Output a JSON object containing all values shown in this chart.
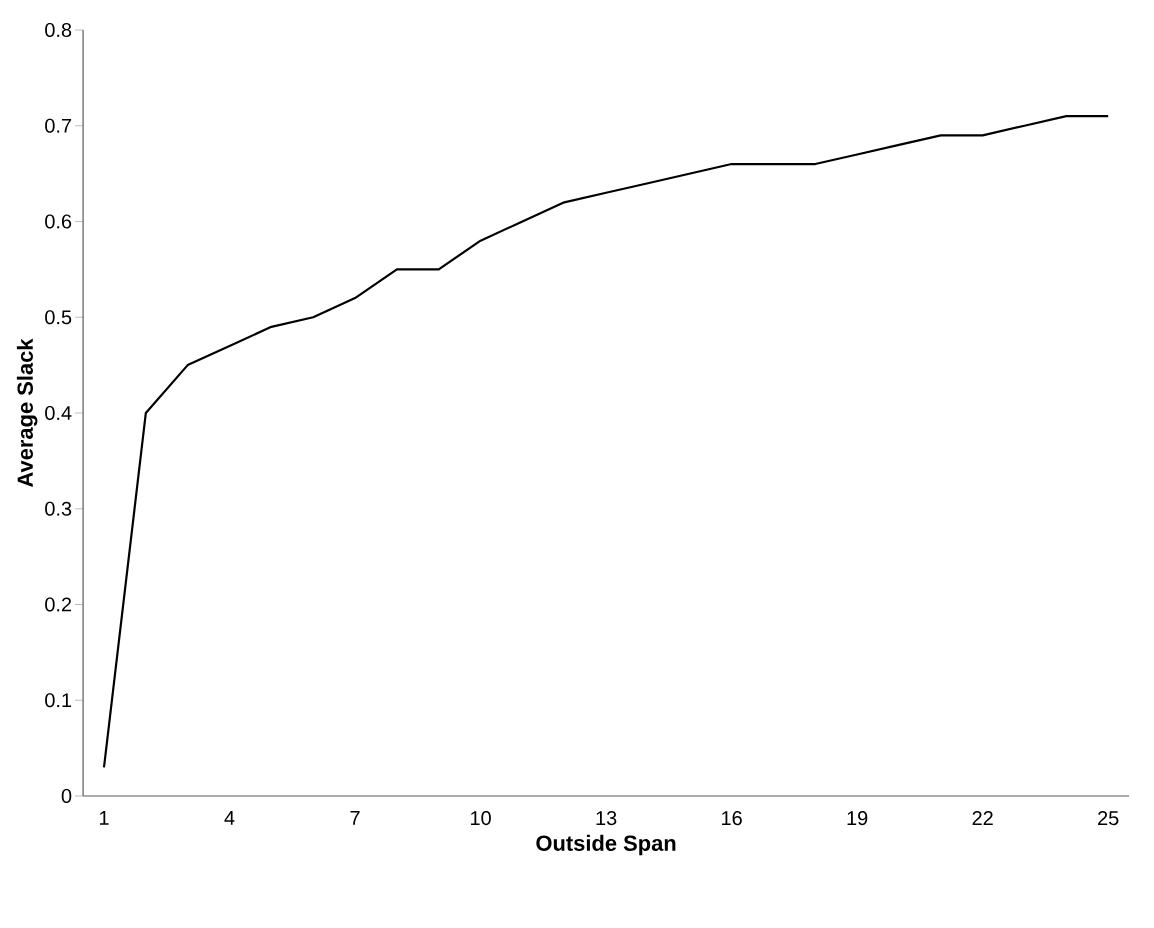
{
  "chart_data": {
    "type": "line",
    "xlabel": "Outside Span",
    "ylabel": "Average Slack",
    "categories": [
      "1",
      null,
      null,
      "4",
      null,
      null,
      "7",
      null,
      null,
      "10",
      null,
      null,
      "13",
      null,
      null,
      "16",
      null,
      null,
      "19",
      null,
      null,
      "22",
      null,
      null,
      "25"
    ],
    "series": [
      {
        "color": "#000000",
        "values": [
          0.03,
          0.4,
          0.45,
          0.47,
          0.49,
          0.5,
          0.52,
          0.55,
          0.55,
          0.58,
          0.6,
          0.62,
          0.63,
          0.64,
          0.65,
          0.66,
          0.66,
          0.66,
          0.67,
          0.68,
          0.69,
          0.69,
          0.7,
          0.71,
          0.71
        ]
      }
    ],
    "ylim": [
      0,
      0.8
    ],
    "yticks": [
      0,
      0.1,
      0.2,
      0.3,
      0.4,
      0.5,
      0.6,
      0.7,
      0.8
    ],
    "grid": false,
    "legend": false,
    "marker": "none",
    "line_style": "solid"
  }
}
